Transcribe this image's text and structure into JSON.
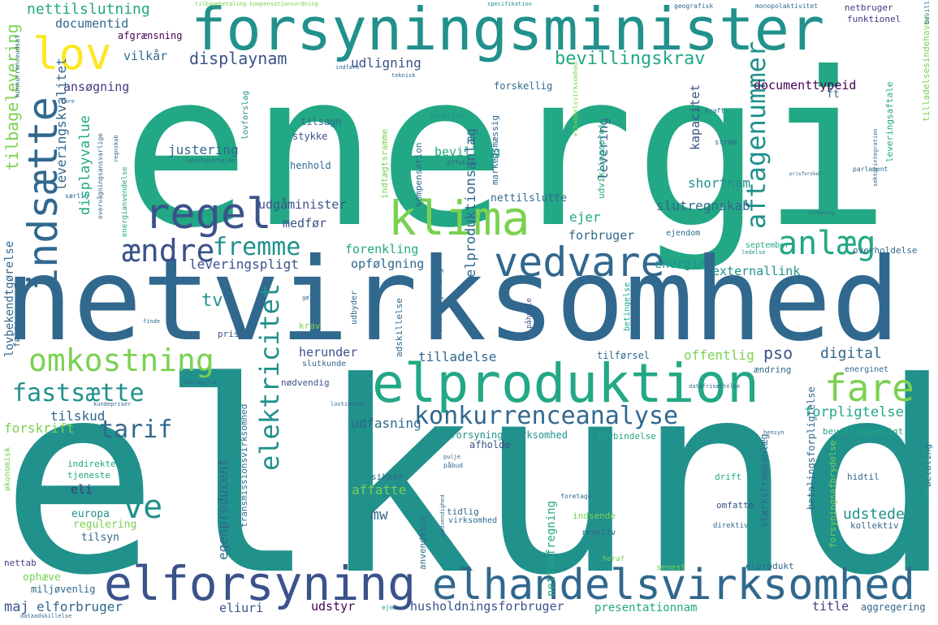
{
  "colors": {
    "background": "#ffffff",
    "teal": "#21918c",
    "green": "#22a884",
    "blue": "#31688e",
    "navy": "#3b528b",
    "indigo": "#443983",
    "purple": "#440154",
    "lime": "#7ad151",
    "yellow": "#fde725"
  },
  "words": {
    "energi": "energi",
    "elkunde": "elkunde",
    "netvirksomhed": "netvirksomhed",
    "forsyningsminister": "forsyningsminister",
    "elproduktion": "elproduktion",
    "elforsyning": "elforsyning",
    "elhandelsvirksomhed": "elhandelsvirksomhed",
    "klima": "klima",
    "lov": "lov",
    "regel": "regel",
    "indsaette": "indsætte",
    "aendre": "ændre",
    "vedvare": "vedvare",
    "anlaeg": "anlæg",
    "fare": "fare",
    "omkostning": "omkostning",
    "fastsaette": "fastsætte",
    "konkurrenceanalyse": "konkurrenceanalyse",
    "tarif": "tarif",
    "fremme": "fremme",
    "ve": "ve",
    "elektricitet": "elektricitet",
    "aftagenummer": "aftagenummer",
    "bevillingskrav": "bevillingskrav",
    "displaynam": "displaynam",
    "nettilslutning": "nettilslutning",
    "tilbagelevering": "tilbagelevering",
    "leveringskvalitet": "leveringskvalitet",
    "displayvalue": "displayvalue",
    "elproduktionsanlaeg": "elproduktionsanlæg",
    "leveringspligt": "leveringspligt",
    "udfasning": "udfasning",
    "forpligtelse": "forpligtelse",
    "documenttypeid": "documenttypeid",
    "udligning": "udligning",
    "documentid": "documentid",
    "vilkaar": "vilkår",
    "ansoegning": "ansøgning",
    "justering": "justering",
    "bevilling": "bevilling",
    "levering": "levering",
    "kapacitet": "kapacitet",
    "shortnam": "shortnam",
    "slutregnskab": "slutregnskab",
    "udgaaminister": "udgåminister",
    "medfoer": "medfør",
    "ejer": "ejer",
    "forbruger": "forbruger",
    "forenkling": "forenkling",
    "energin": "energin",
    "externallink": "externallink",
    "opfoelgning": "opfølgning",
    "tv": "tv",
    "pso": "pso",
    "digital": "digital",
    "offentlig": "offentlig",
    "tilladelse": "tilladelse",
    "herunder": "herunder",
    "udstede": "udstede",
    "affatte": "affatte",
    "mw": "mw",
    "egenproducent": "egenproducent",
    "eli": "eli",
    "europa": "europa",
    "regulering": "regulering",
    "tilsyn": "tilsyn",
    "tilskud": "tilskud",
    "forskrift": "forskrift",
    "maj": "maj",
    "elforbruger": "elforbruger",
    "eliuri": "eliuri",
    "udstyr": "udstyr",
    "husholdningsforbruger": "husholdningsforbruger",
    "presentationnam": "presentationnam",
    "title": "title",
    "aggregering": "aggregering",
    "ophaeve": "ophæve",
    "miljoevenlig": "miljøvenlig",
    "nettab": "nettab",
    "lovbekendtgoerelse": "lovbekendtgørelse",
    "netbruger": "netbruger",
    "funktionel": "funktionel",
    "forskellig": "forskellig",
    "tilsagn": "tilsagn",
    "stykke": "stykke",
    "henhold": "henhold",
    "nettilslutte": "nettilslutte",
    "afgraensning": "afgrænsning",
    "kompensation": "kompensation",
    "tilbagebetaling": "tilbagebetaling kompensationsordning",
    "specifikation": "specifikation",
    "geografisk": "geografisk",
    "monopolaktivitet": "monopolaktivitet",
    "indfoere": "indføre",
    "teknisk": "teknisk",
    "forblive": "forblive",
    "effektiv": "effektiv",
    "kraft": "kraft",
    "stroem": "strøm",
    "ft": "ft",
    "leveringsaftale": "leveringsaftale",
    "tilladelsesindehaver": "tilladelsesindehaver",
    "parlament": "parlament",
    "ejendom": "ejendom",
    "september": "september",
    "overholdelse": "overholdelse",
    "ledelse": "ledelse",
    "gaelde": "gælde",
    "finde": "finde",
    "foelge": "følge",
    "pris": "pris",
    "krav": "krav",
    "adskillelse": "adskillelse",
    "omarbejdning": "omarbejdning",
    "paahvile": "påhvile",
    "betingelse": "betingelse",
    "slutkunde": "slutkunde",
    "noedvendig": "nødvendig",
    "aendring": "ændring",
    "energinet": "energinet",
    "tilfoersel": "tilførsel",
    "datafrisaettelse": "datafrisættelse",
    "undtagelse": "undtagelse",
    "lovtidende": "lovtidende",
    "kundepriser": "kundepriser",
    "elforsyningsvirksomhed": "elforsyningsvirksomhed",
    "forbindelse": "forbindelse",
    "afholde": "afholde",
    "bevillingspligt": "bevillingspligt",
    "hensyn": "hensyn",
    "betaling": "betaling",
    "indirekte": "indirekte",
    "tjeneste": "tjeneste",
    "sikker": "sikker",
    "drift": "drift",
    "hidtil": "hidtil",
    "tidlig": "tidlig",
    "virksomhed": "virksomhed",
    "indsende": "indsende",
    "reaktiv": "reaktiv",
    "omfatte": "omfatte",
    "kollektiv": "kollektiv",
    "direktiv": "direktiv",
    "anvendelse": "anvendelse",
    "nettoafregning": "nettoafregning",
    "stærkstroemsanlaeg": "stærkstrømsanlæg",
    "betalingsforpligtelse": "betalingsforpligtelse",
    "forsyningsafbrydelse": "forsyningsafbrydelse",
    "senest": "senest",
    "heraf": "heraf",
    "elprodukt": "elprodukt",
    "okonomisk": "økonomisk",
    "markedsmaessig": "markedsmæssig",
    "transmissionsnet": "transmissionsnet",
    "udviklingsprojekt": "udviklingsprojekt",
    "indtaegtsramme": "indtægtsramme",
    "lovforslag": "lovforslag",
    "bevillingshaver": "bevillingshaver",
    "udbyder": "udbyder",
    "foretage": "foretage",
    "paabud": "påbud",
    "pulje": "pulje",
    "nodvendighed": "nødvendighed",
    "eje": "eje",
    "dataadskillelse": "dataadskillelse",
    "transmissionsvirksomhed": "transmissionsvirksomhed",
    "overvaagning": "overvågningsansvarlige",
    "konkurrenceudsat": "konkurrenceudsat",
    "saerlig": "særlig",
    "fore": "føre",
    "udvalgsarbejde": "udvalgsarbejde",
    "energianvendelse": "energianvendelse",
    "elhandel": "elhandelsvirksomhed",
    "regnskab": "regnskab",
    "forskning": "forskning",
    "sektorintegration": "sektorintegration",
    "prisforskel": "prisforskel"
  }
}
